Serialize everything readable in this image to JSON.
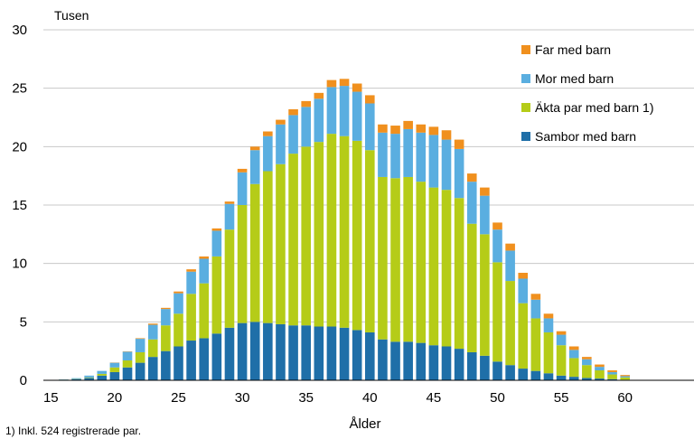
{
  "chart_data": {
    "type": "bar",
    "stacked": true,
    "ylabel": "Tusen",
    "xlabel": "Ålder",
    "footnote": "1) Inkl. 524 registrerade par.",
    "ylim": [
      0,
      30
    ],
    "yticks": [
      0,
      5,
      10,
      15,
      20,
      25,
      30
    ],
    "xticks": [
      15,
      20,
      25,
      30,
      35,
      40,
      45,
      50,
      55,
      60
    ],
    "legend_position": "top-right",
    "grid": "horizontal",
    "x": [
      15,
      16,
      17,
      18,
      19,
      20,
      21,
      22,
      23,
      24,
      25,
      26,
      27,
      28,
      29,
      30,
      31,
      32,
      33,
      34,
      35,
      36,
      37,
      38,
      39,
      40,
      41,
      42,
      43,
      44,
      45,
      46,
      47,
      48,
      49,
      50,
      51,
      52,
      53,
      54,
      55,
      56,
      57,
      58,
      59,
      60
    ],
    "series": [
      {
        "name": "Sambor med barn",
        "color": "#1f6fa8",
        "values": [
          0.02,
          0.05,
          0.1,
          0.2,
          0.4,
          0.7,
          1.1,
          1.5,
          2.0,
          2.5,
          2.9,
          3.4,
          3.6,
          4.0,
          4.5,
          4.9,
          5.0,
          4.9,
          4.8,
          4.7,
          4.7,
          4.6,
          4.6,
          4.5,
          4.3,
          4.1,
          3.5,
          3.3,
          3.3,
          3.2,
          3.0,
          2.9,
          2.7,
          2.4,
          2.1,
          1.6,
          1.3,
          1.0,
          0.8,
          0.6,
          0.4,
          0.3,
          0.2,
          0.15,
          0.1,
          0.05
        ]
      },
      {
        "name": "Äkta par med barn 1)",
        "color": "#b5cc18",
        "values": [
          0.0,
          0.01,
          0.02,
          0.05,
          0.15,
          0.4,
          0.6,
          0.9,
          1.5,
          2.2,
          2.8,
          4.0,
          4.7,
          6.6,
          8.4,
          10.1,
          11.8,
          13.0,
          13.7,
          14.7,
          15.3,
          15.8,
          16.5,
          16.4,
          16.2,
          15.6,
          13.9,
          14.0,
          14.1,
          13.8,
          13.5,
          13.4,
          12.9,
          11.0,
          10.4,
          8.5,
          7.2,
          5.6,
          4.5,
          3.5,
          2.6,
          1.6,
          1.1,
          0.7,
          0.4,
          0.2
        ]
      },
      {
        "name": "Mor med barn",
        "color": "#5aaee0",
        "values": [
          0.0,
          0.02,
          0.06,
          0.15,
          0.25,
          0.4,
          0.75,
          1.15,
          1.25,
          1.4,
          1.75,
          1.9,
          2.1,
          2.2,
          2.2,
          2.8,
          2.9,
          3.0,
          3.4,
          3.3,
          3.4,
          3.7,
          4.0,
          4.3,
          4.2,
          4.0,
          3.8,
          3.8,
          4.1,
          4.2,
          4.5,
          4.3,
          4.2,
          3.6,
          3.3,
          2.8,
          2.6,
          2.1,
          1.6,
          1.2,
          0.9,
          0.7,
          0.5,
          0.3,
          0.2,
          0.1
        ]
      },
      {
        "name": "Far med barn",
        "color": "#f0901e",
        "values": [
          0.0,
          0.0,
          0.0,
          0.0,
          0.0,
          0.02,
          0.03,
          0.05,
          0.1,
          0.1,
          0.15,
          0.2,
          0.2,
          0.2,
          0.2,
          0.3,
          0.3,
          0.4,
          0.4,
          0.5,
          0.5,
          0.5,
          0.6,
          0.6,
          0.7,
          0.7,
          0.7,
          0.7,
          0.7,
          0.7,
          0.7,
          0.8,
          0.8,
          0.7,
          0.7,
          0.6,
          0.6,
          0.5,
          0.5,
          0.4,
          0.3,
          0.3,
          0.2,
          0.2,
          0.15,
          0.1
        ]
      }
    ],
    "legend_order": [
      "Far med barn",
      "Mor med barn",
      "Äkta par med barn 1)",
      "Sambor med barn"
    ]
  }
}
